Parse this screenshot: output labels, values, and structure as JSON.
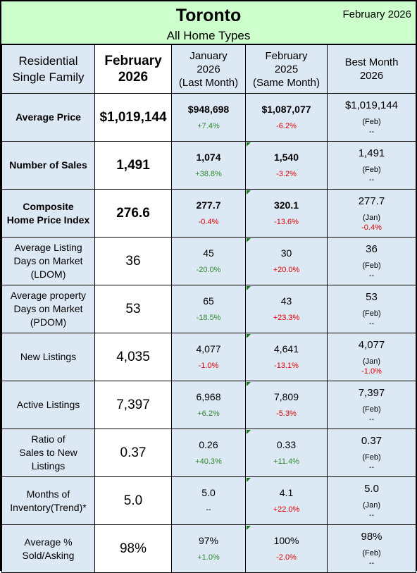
{
  "header": {
    "city": "Toronto",
    "subtitle": "All Home Types",
    "period": "February 2026"
  },
  "columns": {
    "category_line1": "Residential",
    "category_line2": "Single Family",
    "current_line1": "February",
    "current_line2": "2026",
    "last_month_line1": "January",
    "last_month_line2": "2026",
    "last_month_line3": "(Last Month)",
    "same_month_line1": "February",
    "same_month_line2": "2025",
    "same_month_line3": "(Same Month)",
    "best_line1": "Best Month",
    "best_line2": "2026"
  },
  "rows": [
    {
      "label": [
        "Average Price"
      ],
      "bold": true,
      "current": "$1,019,144",
      "last_month": {
        "value": "$948,698",
        "change": "+7.4%",
        "trend": "pos"
      },
      "same_month": {
        "value": "$1,087,077",
        "change": "-6.2%",
        "trend": "neg"
      },
      "best": {
        "value": "$1,019,144",
        "month": "(Feb)",
        "change": "--",
        "trend": "neu"
      }
    },
    {
      "label": [
        "Number of Sales"
      ],
      "bold": true,
      "current": "1,491",
      "last_month": {
        "value": "1,074",
        "change": "+38.8%",
        "trend": "pos"
      },
      "same_month": {
        "value": "1,540",
        "change": "-3.2%",
        "trend": "neg"
      },
      "best": {
        "value": "1,491",
        "month": "(Feb)",
        "change": "--",
        "trend": "neu"
      }
    },
    {
      "label": [
        "Composite",
        "Home Price Index"
      ],
      "bold": true,
      "current": "276.6",
      "last_month": {
        "value": "277.7",
        "change": "-0.4%",
        "trend": "neg"
      },
      "same_month": {
        "value": "320.1",
        "change": "-13.6%",
        "trend": "neg"
      },
      "best": {
        "value": "277.7",
        "month": "(Jan)",
        "change": "-0.4%",
        "trend": "neg"
      }
    },
    {
      "label": [
        "Average Listing",
        "Days on Market",
        "(LDOM)"
      ],
      "bold": false,
      "current": "36",
      "last_month": {
        "value": "45",
        "change": "-20.0%",
        "trend": "pos"
      },
      "same_month": {
        "value": "30",
        "change": "+20.0%",
        "trend": "neg"
      },
      "best": {
        "value": "36",
        "month": "(Feb)",
        "change": "--",
        "trend": "neu"
      }
    },
    {
      "label": [
        "Average property",
        "Days on Market",
        "(PDOM)"
      ],
      "bold": false,
      "current": "53",
      "last_month": {
        "value": "65",
        "change": "-18.5%",
        "trend": "pos"
      },
      "same_month": {
        "value": "43",
        "change": "+23.3%",
        "trend": "neg"
      },
      "best": {
        "value": "53",
        "month": "(Feb)",
        "change": "--",
        "trend": "neu"
      }
    },
    {
      "label": [
        "New Listings"
      ],
      "bold": false,
      "current": "4,035",
      "last_month": {
        "value": "4,077",
        "change": "-1.0%",
        "trend": "neg"
      },
      "same_month": {
        "value": "4,641",
        "change": "-13.1%",
        "trend": "neg"
      },
      "best": {
        "value": "4,077",
        "month": "(Jan)",
        "change": "-1.0%",
        "trend": "neg"
      }
    },
    {
      "label": [
        "Active Listings"
      ],
      "bold": false,
      "current": "7,397",
      "last_month": {
        "value": "6,968",
        "change": "+6.2%",
        "trend": "pos"
      },
      "same_month": {
        "value": "7,809",
        "change": "-5.3%",
        "trend": "neg"
      },
      "best": {
        "value": "7,397",
        "month": "(Feb)",
        "change": "--",
        "trend": "neu"
      }
    },
    {
      "label": [
        "Ratio of",
        "Sales to New",
        "Listings"
      ],
      "bold": false,
      "current": "0.37",
      "last_month": {
        "value": "0.26",
        "change": "+40.3%",
        "trend": "pos"
      },
      "same_month": {
        "value": "0.33",
        "change": "+11.4%",
        "trend": "pos"
      },
      "best": {
        "value": "0.37",
        "month": "(Feb)",
        "change": "--",
        "trend": "neu"
      }
    },
    {
      "label": [
        "Months of",
        "Inventory(Trend)*"
      ],
      "bold": false,
      "current": "5.0",
      "last_month": {
        "value": "5.0",
        "change": "--",
        "trend": "neu"
      },
      "same_month": {
        "value": "4.1",
        "change": "+22.0%",
        "trend": "neg"
      },
      "best": {
        "value": "5.0",
        "month": "(Jan)",
        "change": "--",
        "trend": "neu"
      }
    },
    {
      "label": [
        "Average %",
        "Sold/Asking"
      ],
      "bold": false,
      "current": "98%",
      "last_month": {
        "value": "97%",
        "change": "+1.0%",
        "trend": "pos"
      },
      "same_month": {
        "value": "100%",
        "change": "-2.0%",
        "trend": "neg"
      },
      "best": {
        "value": "98%",
        "month": "(Feb)",
        "change": "--",
        "trend": "neu"
      }
    }
  ],
  "colors": {
    "header_bg": "#ccffcc",
    "cell_bg": "#dde8f5",
    "current_bg": "#ffffff",
    "positive": "#2e8b2e",
    "negative": "#e00000"
  }
}
